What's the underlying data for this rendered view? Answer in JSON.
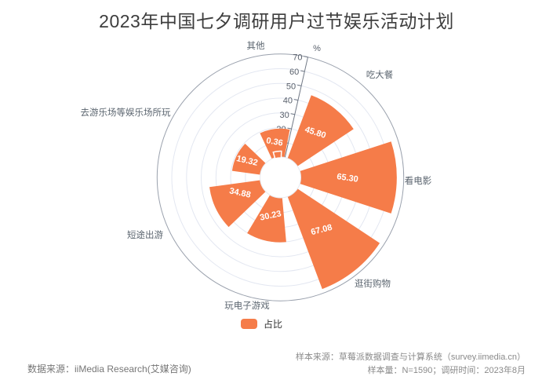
{
  "title": "2023年中国七夕调研用户过节娱乐活动计划",
  "chart_data": {
    "type": "bar",
    "subtype": "nightingale-polar-rose",
    "title": "2023年中国七夕调研用户过节娱乐活动计划",
    "categories": [
      "其他",
      "吃大餐",
      "看电影",
      "逛街购物",
      "玩电子游戏",
      "短途出游",
      "去游乐场等娱乐场所玩"
    ],
    "series": [
      {
        "name": "占比",
        "values": [
          0.36,
          45.8,
          65.3,
          67.08,
          30.23,
          34.88,
          19.32
        ],
        "value_labels": [
          "0.36",
          "45.80",
          "65.30",
          "67.08",
          "30.23",
          "34.88",
          "19.32"
        ]
      }
    ],
    "unit_label": "%",
    "radial_axis": {
      "min": 0,
      "max": 70,
      "ticks": [
        0,
        10,
        20,
        30,
        40,
        50,
        60,
        70
      ]
    },
    "grid": true,
    "legend_position": "bottom"
  },
  "legend": {
    "label": "占比"
  },
  "footer": {
    "source_left": "数据来源：iiMedia Research(艾媒咨询)",
    "sample_source": "样本来源：草莓派数据调查与计算系统（survey.iimedia.cn）",
    "sample_info": "样本量：N=1590；调研时间：2023年8月"
  },
  "colors": {
    "accent": "#F57C49",
    "grid": "#E3E7F1",
    "outer_ring": "#9AA1AD",
    "axis": "#707885",
    "tick_text": "#5A616C",
    "category_text": "#5C6670",
    "value_text": "#FFFFFF",
    "title_text": "#3D3D3D"
  }
}
